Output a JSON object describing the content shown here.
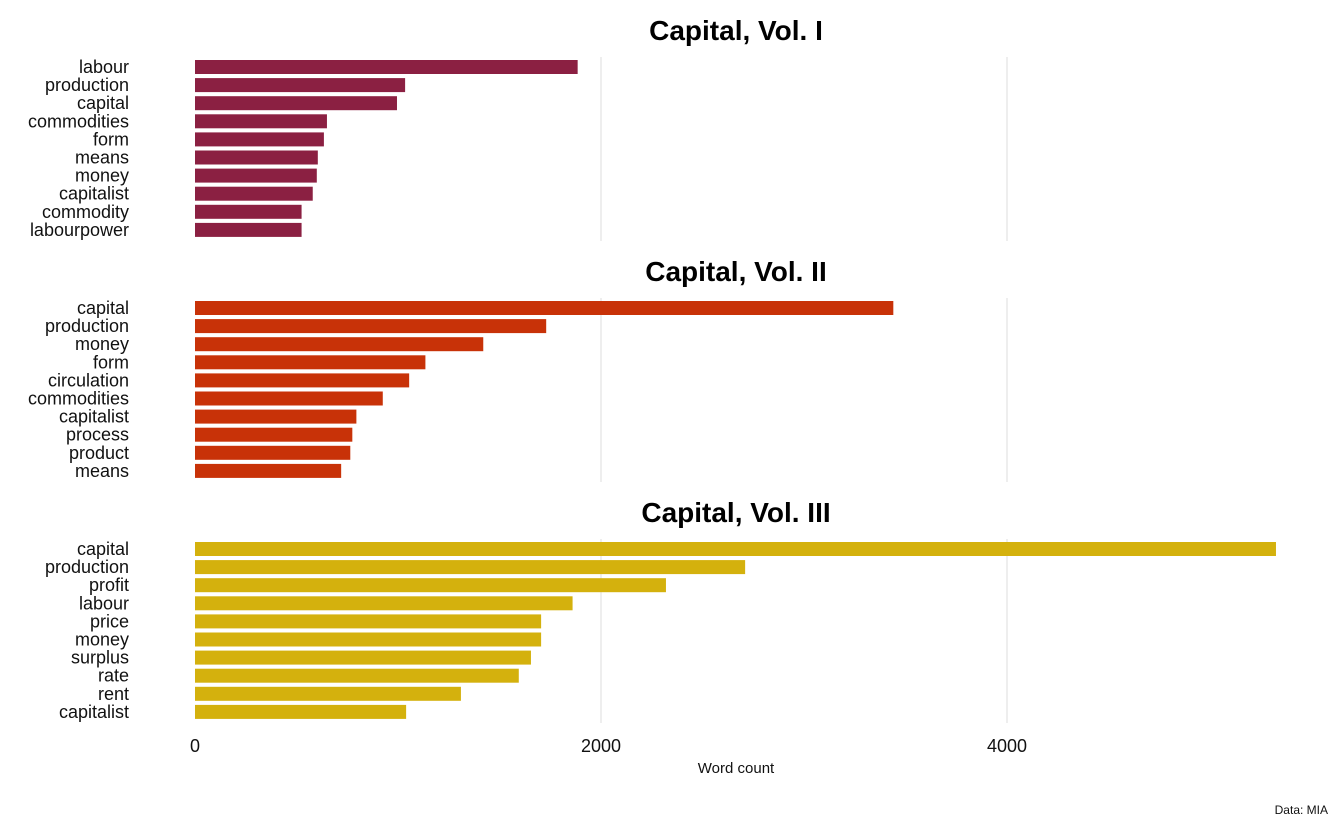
{
  "chart_data": {
    "type": "bar",
    "orientation": "horizontal",
    "xlabel": "Word count",
    "caption": "Data: MIA",
    "xlim": [
      0,
      5400
    ],
    "xticks": [
      0,
      2000,
      4000
    ],
    "grid": true,
    "panels": [
      {
        "title": "Capital, Vol. I",
        "color": "#8B2042",
        "categories": [
          "labour",
          "production",
          "capital",
          "commodities",
          "form",
          "means",
          "money",
          "capitalist",
          "commodity",
          "labourpower"
        ],
        "values": [
          1885,
          1035,
          995,
          650,
          635,
          605,
          600,
          580,
          525,
          525
        ]
      },
      {
        "title": "Capital, Vol. II",
        "color": "#C83208",
        "categories": [
          "capital",
          "production",
          "money",
          "form",
          "circulation",
          "commodities",
          "capitalist",
          "process",
          "product",
          "means"
        ],
        "values": [
          3440,
          1730,
          1420,
          1135,
          1055,
          925,
          795,
          775,
          765,
          720
        ]
      },
      {
        "title": "Capital, Vol. III",
        "color": "#D4B10D",
        "categories": [
          "capital",
          "production",
          "profit",
          "labour",
          "price",
          "money",
          "surplus",
          "rate",
          "rent",
          "capitalist"
        ],
        "values": [
          5325,
          2710,
          2320,
          1860,
          1705,
          1705,
          1655,
          1595,
          1310,
          1040
        ]
      }
    ]
  }
}
